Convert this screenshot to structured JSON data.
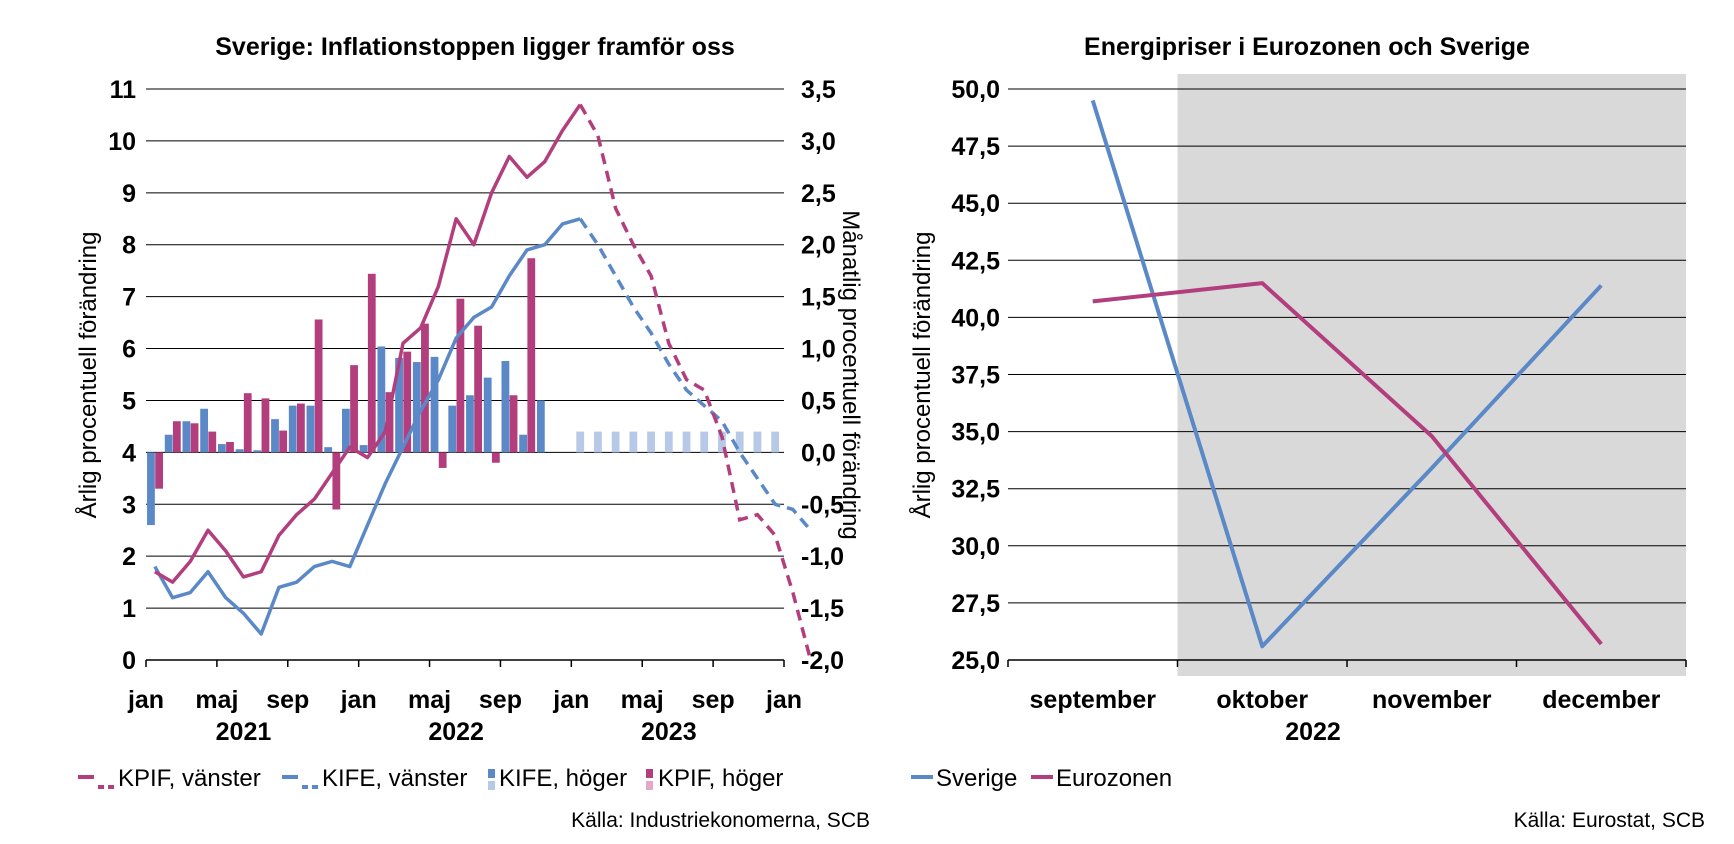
{
  "chart_data": [
    {
      "type": "bar",
      "title": "Sverige: Inflationstoppen ligger framför oss",
      "ylabel_left": "Årlig procentuell förändring",
      "ylabel_right": "Månatlig procentuell förändring",
      "ylim_left": [
        0,
        11
      ],
      "ylim_right": [
        -2.0,
        3.5
      ],
      "yticks_left": [
        "0",
        "1",
        "2",
        "3",
        "4",
        "5",
        "6",
        "7",
        "8",
        "9",
        "10",
        "11"
      ],
      "yticks_right": [
        "-2,0",
        "-1,5",
        "-1,0",
        "-0,5",
        "0,0",
        "0,5",
        "1,0",
        "1,5",
        "2,0",
        "2,5",
        "3,0",
        "3,5"
      ],
      "x_month_labels": [
        "jan",
        "maj",
        "sep",
        "jan",
        "maj",
        "sep",
        "jan",
        "maj",
        "sep",
        "jan"
      ],
      "x_year_labels": [
        "2021",
        "2022",
        "2023"
      ],
      "grid": true,
      "legend_position": "bottom",
      "legend": [
        "KPIF, vänster",
        "KIFE, vänster",
        "KIFE, höger",
        "KPIF, höger"
      ],
      "source": "Källa: Industriekonomerna, SCB",
      "series": [
        {
          "name": "KPIF, vänster",
          "axis": "left",
          "style": "line",
          "color": "#b33e7e",
          "actual": [
            1.7,
            1.5,
            1.9,
            2.5,
            2.1,
            1.6,
            1.7,
            2.4,
            2.8,
            3.1,
            3.6,
            4.1,
            3.9,
            4.4,
            6.1,
            6.4,
            7.2,
            8.5,
            8.0,
            9.0,
            9.7,
            9.3,
            9.6,
            10.2,
            10.7
          ],
          "forecast": [
            10.7,
            10.1,
            8.7,
            8.0,
            7.4,
            6.1,
            5.4,
            5.2,
            4.3,
            2.7,
            2.8,
            2.4,
            1.3,
            0.0
          ]
        },
        {
          "name": "KIFE, vänster",
          "axis": "left",
          "style": "line",
          "color": "#5b88c6",
          "actual": [
            1.8,
            1.2,
            1.3,
            1.7,
            1.2,
            0.9,
            0.5,
            1.4,
            1.5,
            1.8,
            1.9,
            1.8,
            2.6,
            3.4,
            4.1,
            4.8,
            5.4,
            6.2,
            6.6,
            6.8,
            7.4,
            7.9,
            8.0,
            8.4,
            8.5
          ],
          "forecast": [
            8.5,
            8.0,
            7.4,
            6.8,
            6.3,
            5.7,
            5.2,
            4.9,
            4.6,
            4.0,
            3.5,
            3.0,
            2.9,
            2.5
          ]
        },
        {
          "name": "KIFE, höger",
          "axis": "right",
          "style": "bar",
          "color": "#5b88c6",
          "values": [
            -0.7,
            0.17,
            0.3,
            0.42,
            0.08,
            0.03,
            0.02,
            0.32,
            0.45,
            0.45,
            0.05,
            0.42,
            0.07,
            1.02,
            0.91,
            0.87,
            0.92,
            0.45,
            0.55,
            0.72,
            0.88,
            0.17,
            0.5
          ],
          "forecast_values": [
            0.2,
            0.2,
            0.2,
            0.2,
            0.2,
            0.2,
            0.2,
            0.2,
            0.2,
            0.2,
            0.2,
            0.2
          ]
        },
        {
          "name": "KPIF, höger",
          "axis": "right",
          "style": "bar",
          "color": "#b33e7e",
          "values": [
            -0.35,
            0.3,
            0.28,
            0.2,
            0.1,
            0.57,
            0.52,
            0.21,
            0.47,
            1.28,
            -0.55,
            0.84,
            1.72,
            0.58,
            0.97,
            1.24,
            -0.15,
            1.48,
            1.22,
            -0.1,
            0.55,
            1.87
          ],
          "forecast_values": []
        }
      ]
    },
    {
      "type": "line",
      "title": "Energipriser i Eurozonen och Sverige",
      "ylabel": "Årlig procentuell förändring",
      "ylim": [
        25.0,
        50.0
      ],
      "yticks": [
        "25,0",
        "27,5",
        "30,0",
        "32,5",
        "35,0",
        "37,5",
        "40,0",
        "42,5",
        "45,0",
        "47,5",
        "50,0"
      ],
      "categories": [
        "september",
        "oktober",
        "november",
        "december"
      ],
      "x_year_label": "2022",
      "grid": true,
      "shaded_region": [
        "oktober",
        "december"
      ],
      "shade_color": "#d9d9d9",
      "legend_position": "bottom-left",
      "legend": [
        "Sverige",
        "Eurozonen"
      ],
      "source": "Källa: Eurostat, SCB",
      "series": [
        {
          "name": "Sverige",
          "color": "#5b88c6",
          "values": [
            49.5,
            25.6,
            33.4,
            41.4
          ]
        },
        {
          "name": "Eurozonen",
          "color": "#b33e7e",
          "values": [
            40.7,
            41.5,
            34.8,
            25.7
          ]
        }
      ]
    }
  ]
}
